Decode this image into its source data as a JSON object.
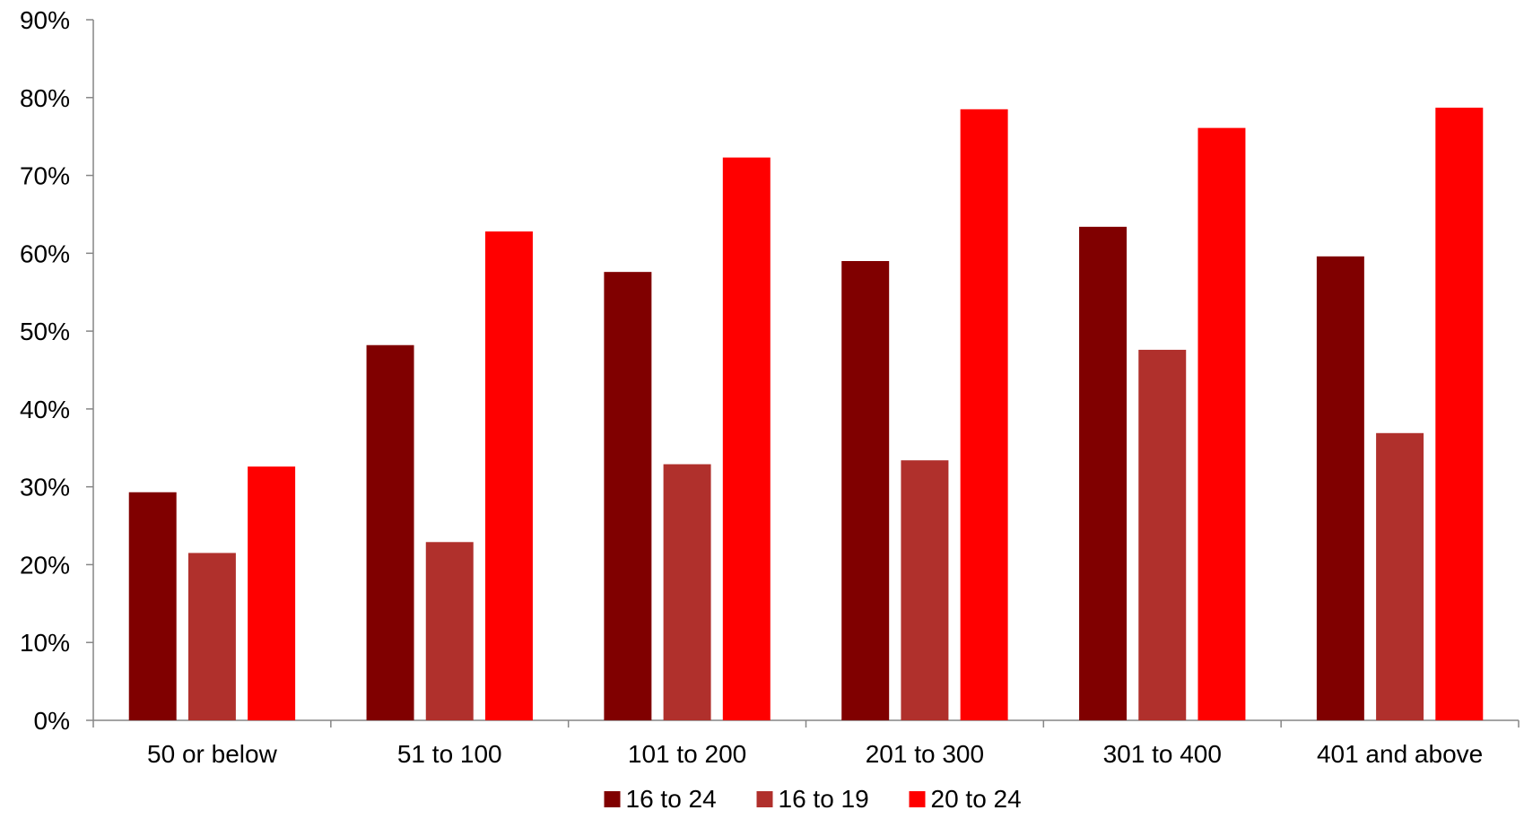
{
  "chart_data": {
    "type": "bar",
    "title": "",
    "xlabel": "",
    "ylabel": "",
    "categories": [
      "50 or below",
      "51 to 100",
      "101 to 200",
      "201 to 300",
      "301 to 400",
      "401 and above"
    ],
    "series": [
      {
        "name": "16 to 24",
        "color": "#800000",
        "values": [
          29.3,
          48.2,
          57.6,
          59.0,
          63.4,
          59.6
        ]
      },
      {
        "name": "16 to 19",
        "color": "#B0302C",
        "values": [
          21.5,
          22.9,
          32.9,
          33.4,
          47.6,
          36.9
        ]
      },
      {
        "name": "20 to 24",
        "color": "#FF0000",
        "values": [
          32.6,
          62.8,
          72.3,
          78.5,
          76.1,
          78.7
        ]
      }
    ],
    "ylim": [
      0,
      90
    ],
    "yticks": [
      0,
      10,
      20,
      30,
      40,
      50,
      60,
      70,
      80,
      90
    ],
    "ytick_labels": [
      "0%",
      "10%",
      "20%",
      "30%",
      "40%",
      "50%",
      "60%",
      "70%",
      "80%",
      "90%"
    ],
    "grid": false,
    "legend_position": "bottom-center"
  }
}
